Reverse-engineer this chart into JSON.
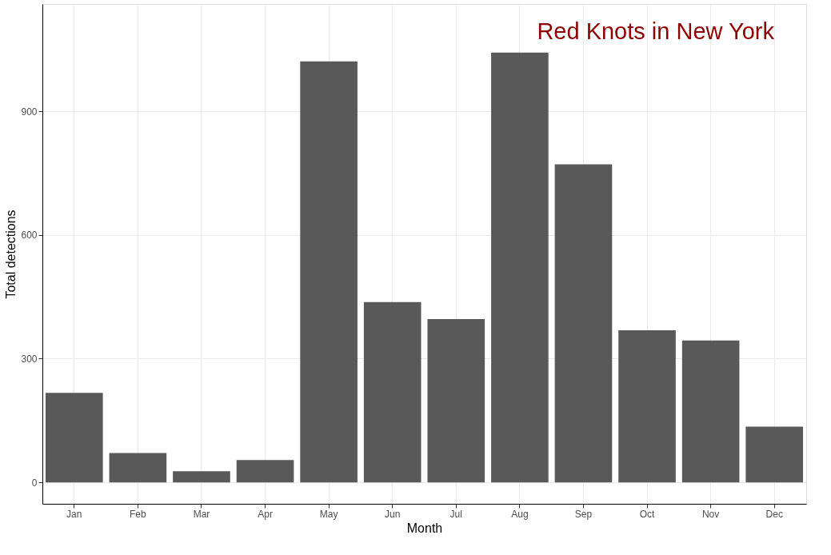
{
  "chart_data": {
    "type": "bar",
    "title": "Red Knots in New York",
    "xlabel": "Month",
    "ylabel": "Total detections",
    "categories": [
      "Jan",
      "Feb",
      "Mar",
      "Apr",
      "May",
      "Jun",
      "Jul",
      "Aug",
      "Sep",
      "Oct",
      "Nov",
      "Dec"
    ],
    "values": [
      217,
      71,
      27,
      54,
      1021,
      437,
      396,
      1042,
      771,
      369,
      344,
      135
    ],
    "color": "#595959",
    "ylim": [
      -52,
      1160
    ],
    "yticks": [
      0,
      300,
      600,
      900
    ],
    "grid": true
  }
}
